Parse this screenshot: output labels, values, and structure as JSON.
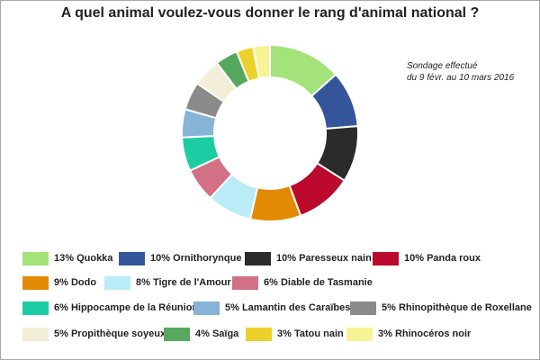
{
  "chart_data": {
    "type": "pie",
    "donut": true,
    "title": "A quel animal voulez-vous donner le rang d'animal national ?",
    "note": [
      "Sondage effectué",
      "du 9 févr. au 10 mars 2016"
    ],
    "legend_position": "bottom",
    "slices": [
      {
        "label": "Quokka",
        "value": 13,
        "legend": "13% Quokka",
        "color": "#a3e37a"
      },
      {
        "label": "Ornithorynque",
        "value": 10,
        "legend": "10% Ornithorynque",
        "color": "#34559a"
      },
      {
        "label": "Paresseux nain",
        "value": 10,
        "legend": "10% Paresseux nain",
        "color": "#2b2b2b"
      },
      {
        "label": "Panda roux",
        "value": 10,
        "legend": "10% Panda roux",
        "color": "#bb0a2e"
      },
      {
        "label": "Dodo",
        "value": 9,
        "legend": "9% Dodo",
        "color": "#e38a05"
      },
      {
        "label": "Tigre de l'Amour",
        "value": 8,
        "legend": "8% Tigre de l'Amour",
        "color": "#b9ecf6"
      },
      {
        "label": "Diable de Tasmanie",
        "value": 6,
        "legend": "6% Diable de Tasmanie",
        "color": "#d27085"
      },
      {
        "label": "Hippocampe de la Réunion",
        "value": 6,
        "legend": "6% Hippocampe de la Réunion",
        "color": "#1ccda3"
      },
      {
        "label": "Lamantin des Caraïbes",
        "value": 5,
        "legend": "5% Lamantin des Caraïbes",
        "color": "#86b3d6"
      },
      {
        "label": "Rhinopithèque de Roxellane",
        "value": 5,
        "legend": "5% Rhinopithèque de Roxellane",
        "color": "#8a8a8a"
      },
      {
        "label": "Propithèque soyeux",
        "value": 5,
        "legend": "5% Propithèque soyeux",
        "color": "#f2eed7"
      },
      {
        "label": "Saïga",
        "value": 4,
        "legend": "4% Saïga",
        "color": "#56a85c"
      },
      {
        "label": "Tatou nain",
        "value": 3,
        "legend": "3% Tatou nain",
        "color": "#ecd02b"
      },
      {
        "label": "Rhinocéros noir",
        "value": 3,
        "legend": "3% Rhinocéros noir",
        "color": "#f5f394"
      }
    ]
  }
}
